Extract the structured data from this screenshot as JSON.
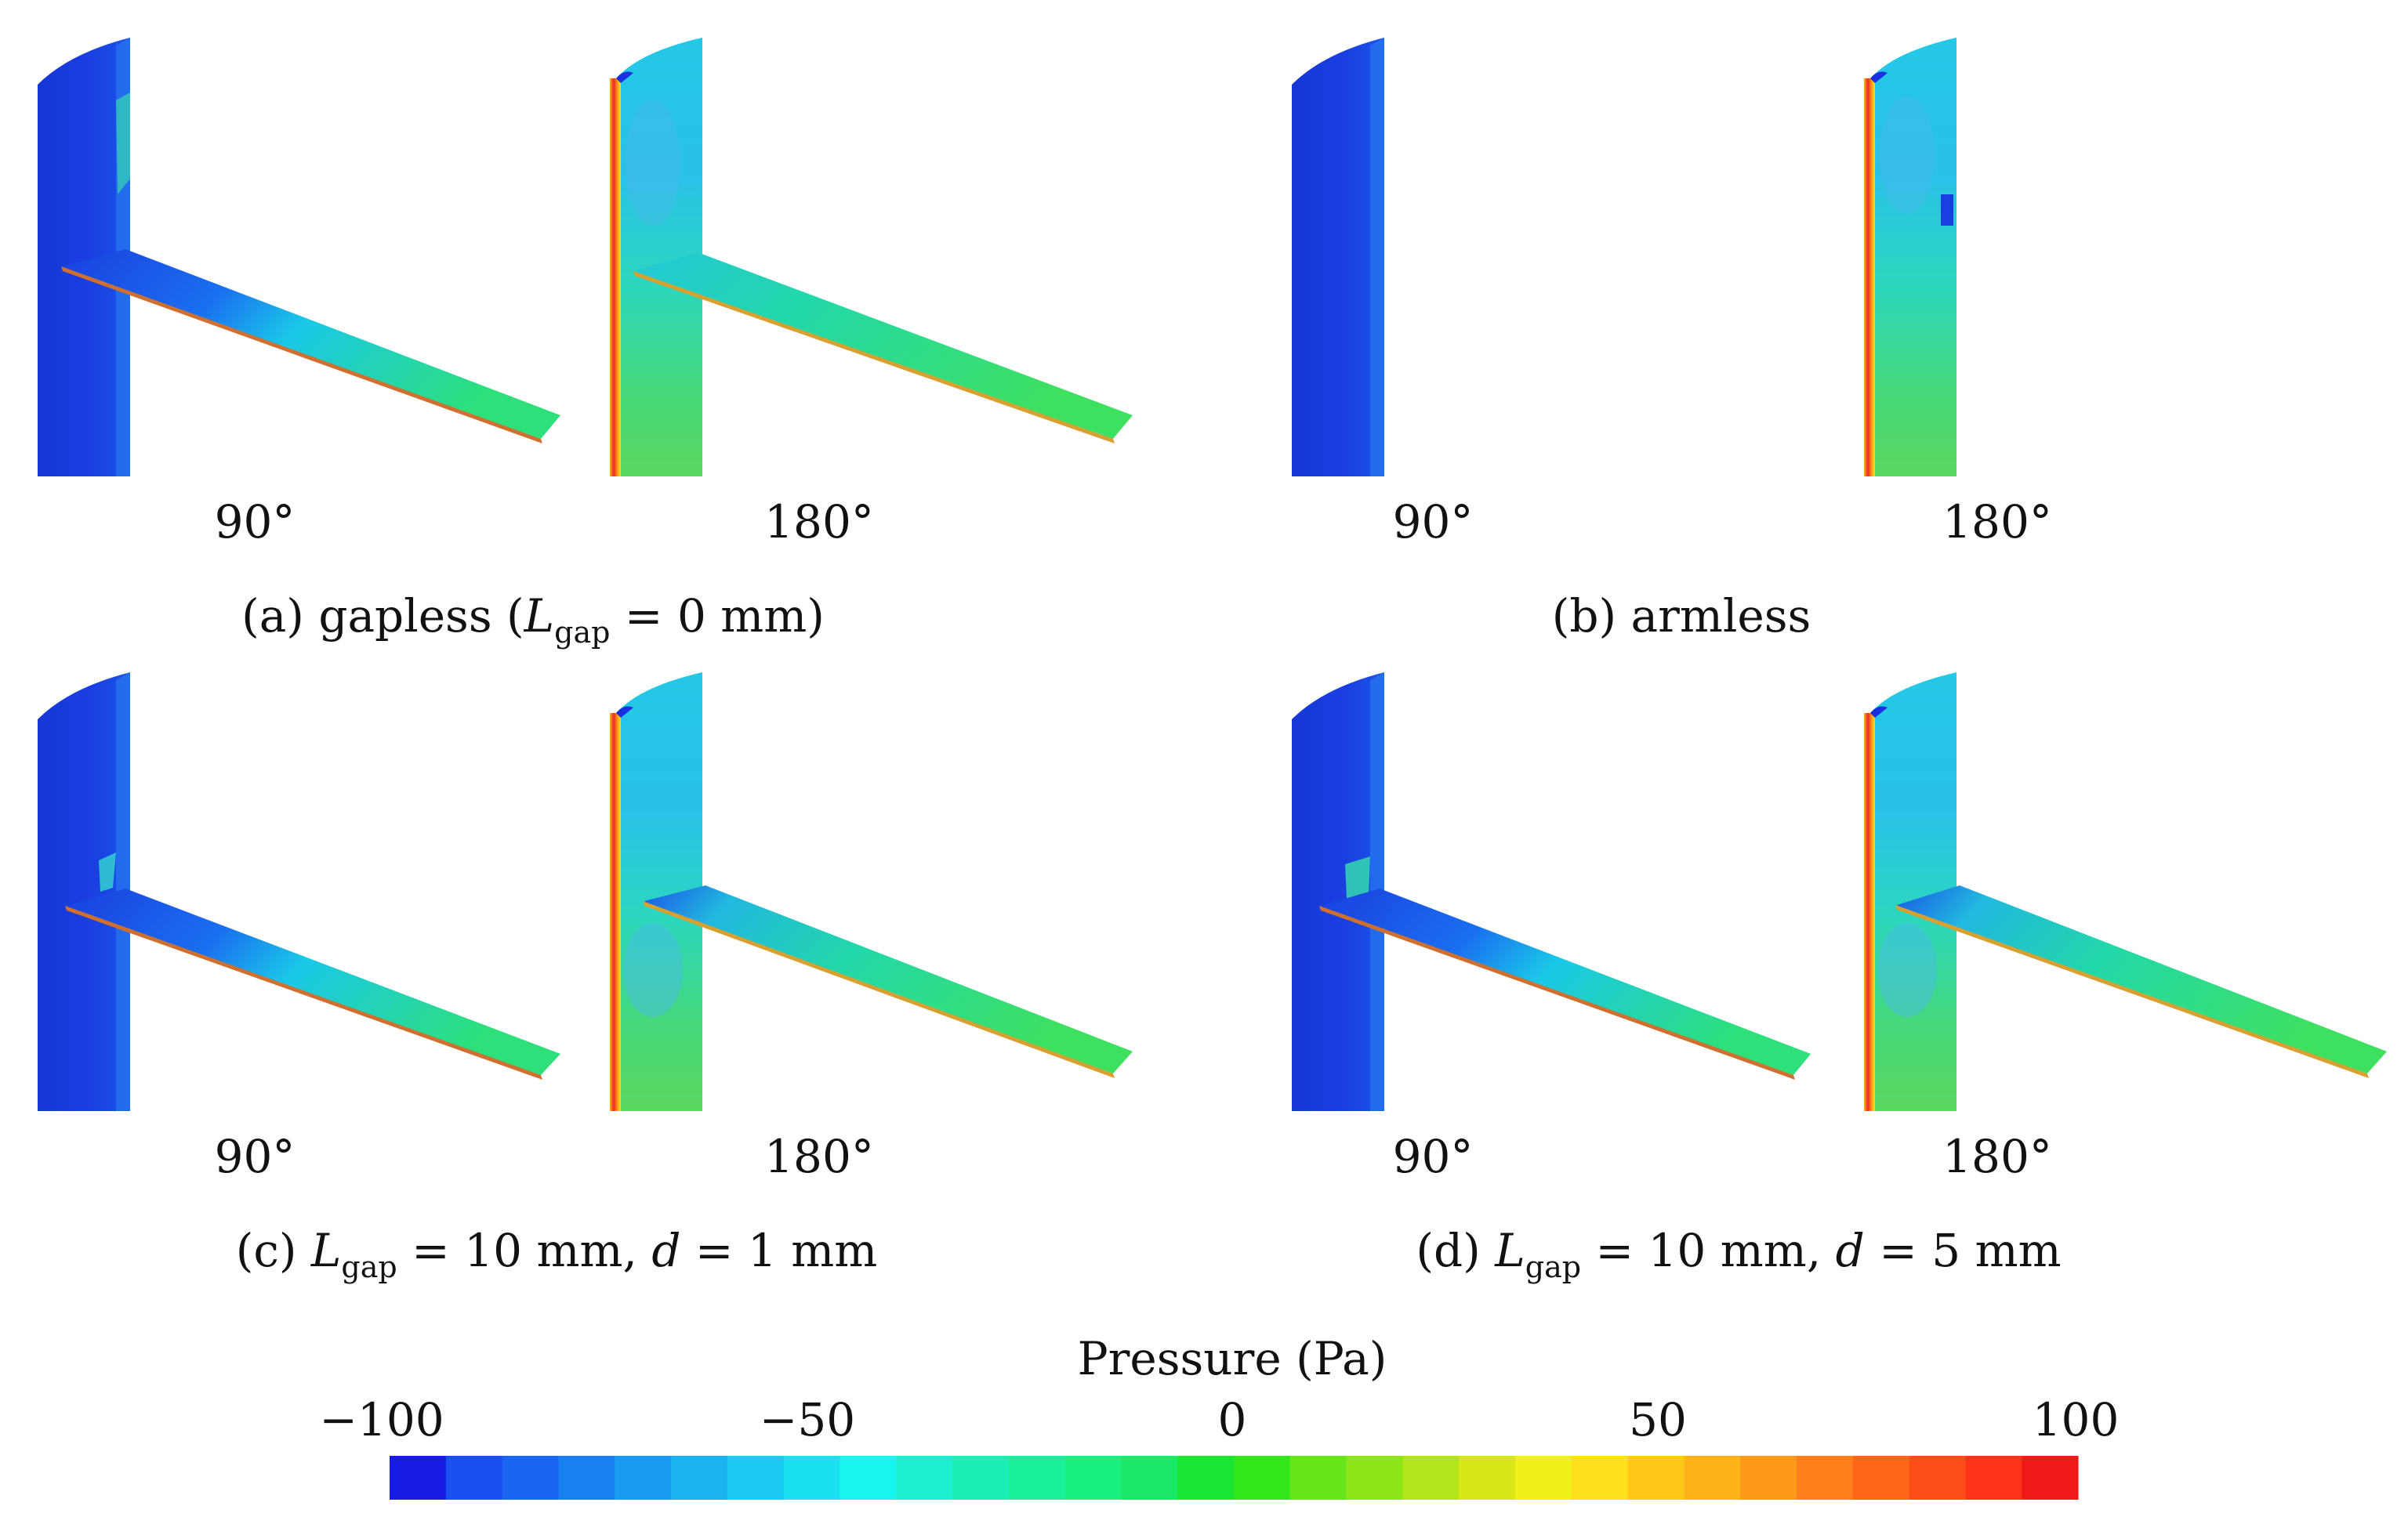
{
  "panels": [
    {
      "id": "a",
      "caption": {
        "prefix": "(a) gapless (",
        "var": "L",
        "sub": "gap",
        "rest": " = 0 mm)"
      },
      "angles": [
        "90°",
        "180°"
      ],
      "has_arm": true
    },
    {
      "id": "b",
      "caption": {
        "prefix": "(b) armless",
        "var": "",
        "sub": "",
        "rest": ""
      },
      "angles": [
        "90°",
        "180°"
      ],
      "has_arm": false
    },
    {
      "id": "c",
      "caption": {
        "prefix": "(c) ",
        "var": "L",
        "sub": "gap",
        "rest": " = 10 mm, ",
        "var2": "d",
        "rest2": " = 1 mm"
      },
      "angles": [
        "90°",
        "180°"
      ],
      "has_arm": true
    },
    {
      "id": "d",
      "caption": {
        "prefix": "(d) ",
        "var": "L",
        "sub": "gap",
        "rest": " = 10 mm, ",
        "var2": "d",
        "rest2": " = 5 mm"
      },
      "angles": [
        "90°",
        "180°"
      ],
      "has_arm": true
    }
  ],
  "colorbar": {
    "title": "Pressure (Pa)",
    "ticks": [
      "−100",
      "−50",
      "0",
      "50",
      "100"
    ],
    "min": -100,
    "max": 100,
    "colors": [
      "#1a1ae6",
      "#1a4ff0",
      "#1a66f0",
      "#1a80f0",
      "#1a99f0",
      "#1ab3f0",
      "#1ac8f0",
      "#1ae0f0",
      "#1af5f0",
      "#1af0d0",
      "#1af0b3",
      "#1af099",
      "#1af080",
      "#1ae866",
      "#1ae633",
      "#33e61a",
      "#66e61a",
      "#8ce61a",
      "#b3e61a",
      "#d9e61a",
      "#f0f01a",
      "#ffe01a",
      "#ffc81a",
      "#ffb31a",
      "#ff991a",
      "#ff801a",
      "#ff661a",
      "#ff4d1a",
      "#ff331a",
      "#f01a1a"
    ]
  }
}
